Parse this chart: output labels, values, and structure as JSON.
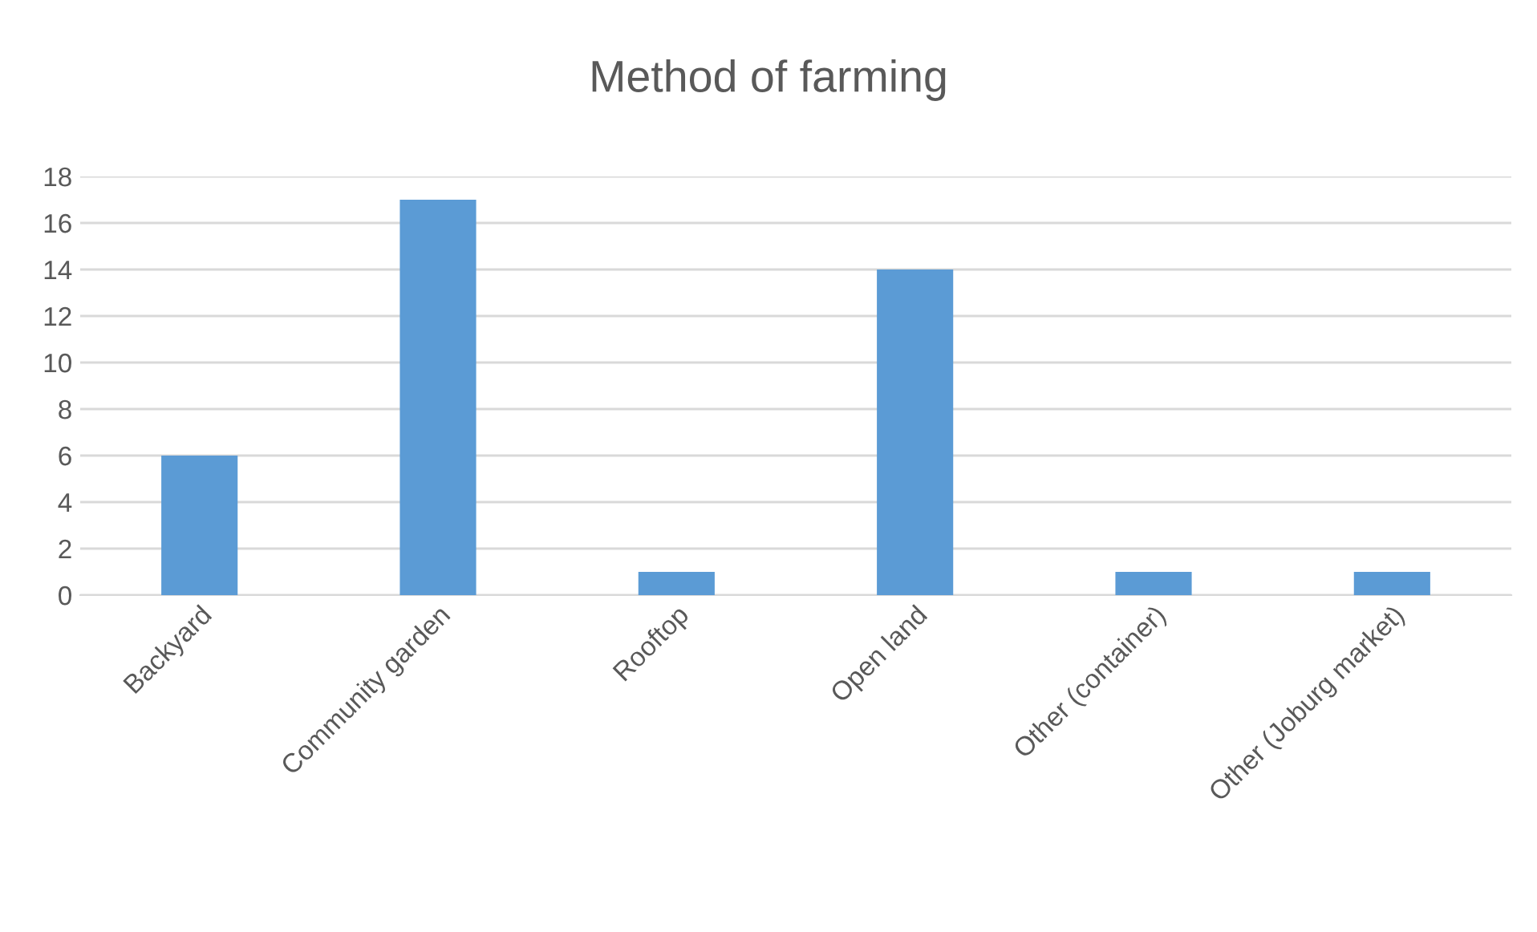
{
  "chart_data": {
    "type": "bar",
    "title": "Method of farming",
    "categories": [
      "Backyard",
      "Community garden",
      "Rooftop",
      "Open land",
      "Other (container)",
      "Other (Joburg market)"
    ],
    "values": [
      6,
      17,
      1,
      14,
      1,
      1
    ],
    "color": "#5b9bd5",
    "ylim": [
      0,
      18
    ],
    "yticks": [
      0,
      2,
      4,
      6,
      8,
      10,
      12,
      14,
      16,
      18
    ],
    "grid": "y",
    "legend": false
  }
}
